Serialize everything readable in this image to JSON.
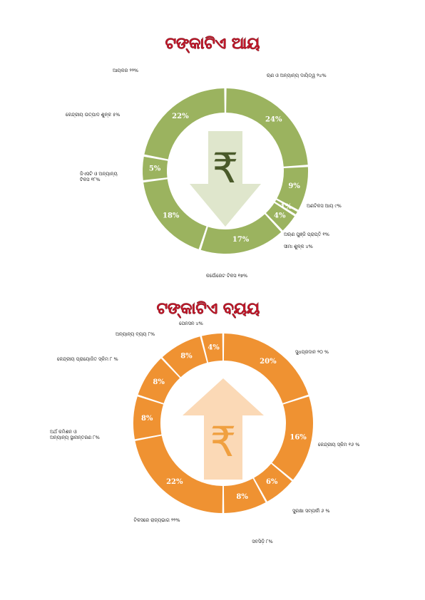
{
  "colors": {
    "title": "#c0182a",
    "income_ring": "#9bb35f",
    "income_arrow": "#dfe6cc",
    "rupee_income": "#4a5a2a",
    "expense_ring": "#ef9232",
    "expense_arrow": "#fbd9b6",
    "rupee_expense": "#f0a040",
    "separator": "#ffffff"
  },
  "icons": {
    "income": "rupee-down-arrow-icon",
    "expense": "rupee-up-arrow-icon"
  },
  "chart_data": [
    {
      "type": "pie",
      "donut": true,
      "title": "ଟଙ୍କାଟିଏ ଆୟ",
      "rupee": "₹",
      "slices": [
        {
          "pct_label": "24%",
          "value": 24,
          "label": "ଋଣ ଓ ଅନ୍ୟାନ୍ୟ ଦାୟିତ୍ୱ ୨୪%"
        },
        {
          "pct_label": "9%",
          "value": 9,
          "label": "ଅଣଟିକସ ଆୟ ୯%"
        },
        {
          "pct_label": "1%",
          "value": 1,
          "label": "ଅଋଣ ପୁଞ୍ଜି ପ୍ରାପ୍ତି ୧%"
        },
        {
          "pct_label": "4%",
          "value": 4,
          "label": "ସୀମା ଶୁଳ୍କ ୪%"
        },
        {
          "pct_label": "17%",
          "value": 17,
          "label": "କର୍ପୋରେଟ ଟିକସ ୧୭%"
        },
        {
          "pct_label": "18%",
          "value": 18,
          "label": "ଜିଏସଟି ଓ ଅନ୍ୟାନ୍ୟ ଟିକସ ୧୮%"
        },
        {
          "pct_label": "5%",
          "value": 5,
          "label": "କେନ୍ଦ୍ରୀୟ ଉତ୍ପାଦ ଶୁଳ୍କ ୫%"
        },
        {
          "pct_label": "22%",
          "value": 22,
          "label": "ଆୟକର ୨୨%"
        }
      ]
    },
    {
      "type": "pie",
      "donut": true,
      "title": "ଟଙ୍କାଟିଏ ବ୍ୟୟ",
      "rupee": "₹",
      "slices": [
        {
          "pct_label": "20%",
          "value": 20,
          "label": "ସୁଧପ୍ରଦାନ ୨୦ %"
        },
        {
          "pct_label": "16%",
          "value": 16,
          "label": "କେନ୍ଦ୍ରୀୟ ସ୍କିମ ୧୬ %"
        },
        {
          "pct_label": "6%",
          "value": 6,
          "label": "ସୁରକ୍ଷା ସମ୍ପର୍କୀ ୬ %"
        },
        {
          "pct_label": "8%",
          "value": 8,
          "label": "ସବସିଡ଼ି ୮%"
        },
        {
          "pct_label": "22%",
          "value": 22,
          "label": "ଟିକସରେ ରାଜ୍ୟଭାଗ ୨୨%"
        },
        {
          "pct_label": "8%",
          "value": 8,
          "label": "ଅର୍ଥ କମିଶନ ଓ ଅନ୍ୟାନ୍ୟ ସ୍ଥାନାନ୍ତରଣ ୮%"
        },
        {
          "pct_label": "8%",
          "value": 8,
          "label": "କେନ୍ଦ୍ରୀୟ ପ୍ରାୟୋଜିତ ସ୍କିମ ୮ %"
        },
        {
          "pct_label": "8%",
          "value": 8,
          "label": "ଅନ୍ୟାନ୍ୟ ବ୍ୟୟ ୮%"
        },
        {
          "pct_label": "4%",
          "value": 4,
          "label": "ପେନସନ ୪%"
        }
      ]
    }
  ]
}
